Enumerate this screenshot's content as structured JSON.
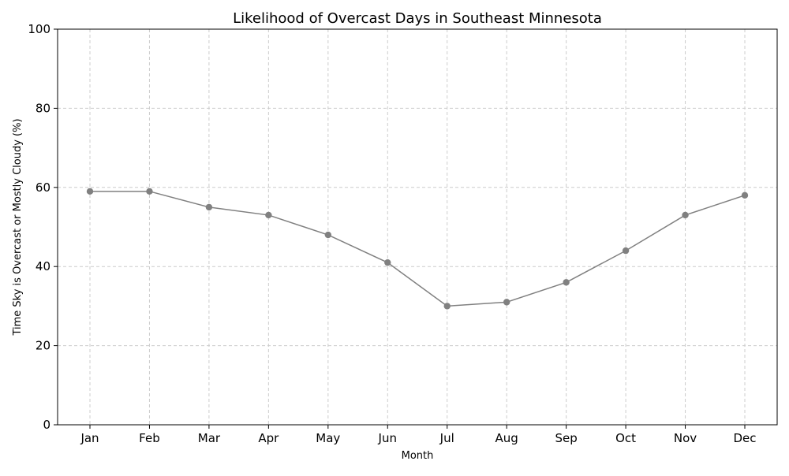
{
  "chart_data": {
    "type": "line",
    "title": "Likelihood of Overcast Days in Southeast Minnesota",
    "xlabel": "Month",
    "ylabel": "Time Sky is Overcast or Mostly Cloudy (%)",
    "categories": [
      "Jan",
      "Feb",
      "Mar",
      "Apr",
      "May",
      "Jun",
      "Jul",
      "Aug",
      "Sep",
      "Oct",
      "Nov",
      "Dec"
    ],
    "series": [
      {
        "values": [
          59,
          59,
          55,
          53,
          48,
          41,
          30,
          31,
          36,
          44,
          53,
          58
        ],
        "color": "#808080",
        "marker": "circle"
      }
    ],
    "ylim": [
      0,
      100
    ],
    "yticks": [
      "0",
      "20",
      "40",
      "60",
      "80",
      "100"
    ],
    "grid": true,
    "legend": "none"
  }
}
